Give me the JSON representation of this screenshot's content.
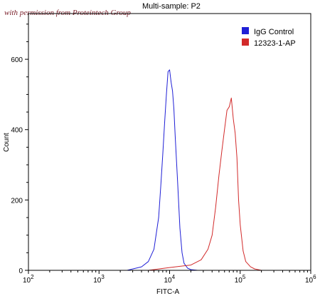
{
  "watermark": "with permission from Proteintech Group",
  "chart_data": {
    "type": "line",
    "title": "Multi-sample: P2",
    "xlabel": "FITC-A",
    "ylabel": "Count",
    "xscale": "log",
    "xlim": [
      100,
      1000000
    ],
    "ylim": [
      0,
      730
    ],
    "x_ticks": [
      {
        "value": 100,
        "base": "10",
        "exp": "2"
      },
      {
        "value": 1000,
        "base": "10",
        "exp": "3"
      },
      {
        "value": 10000,
        "base": "10",
        "exp": "4"
      },
      {
        "value": 100000,
        "base": "10",
        "exp": "5"
      },
      {
        "value": 1000000,
        "base": "10",
        "exp": "6"
      }
    ],
    "y_ticks": [
      0,
      200,
      400,
      600
    ],
    "legend_position": "top-right",
    "series": [
      {
        "name": "IgG Control",
        "color": "#1f1fd6",
        "x": [
          1000,
          2500,
          4000,
          5000,
          6000,
          7000,
          7500,
          8000,
          8500,
          9000,
          9500,
          10000,
          10500,
          11000,
          11500,
          12000,
          13000,
          14000,
          15000,
          16000,
          18000,
          20000,
          25000
        ],
        "y": [
          0,
          0,
          10,
          25,
          60,
          150,
          240,
          330,
          420,
          500,
          565,
          570,
          535,
          510,
          460,
          380,
          250,
          120,
          50,
          20,
          6,
          2,
          0
        ]
      },
      {
        "name": "12323-1-AP",
        "color": "#d22a2a",
        "x": [
          5000,
          10000,
          20000,
          28000,
          35000,
          40000,
          45000,
          50000,
          55000,
          60000,
          65000,
          70000,
          75000,
          80000,
          85000,
          90000,
          95000,
          100000,
          110000,
          120000,
          140000,
          160000,
          200000
        ],
        "y": [
          0,
          8,
          15,
          30,
          60,
          100,
          180,
          270,
          340,
          400,
          455,
          465,
          490,
          430,
          390,
          320,
          200,
          130,
          55,
          25,
          10,
          4,
          0
        ]
      }
    ]
  }
}
